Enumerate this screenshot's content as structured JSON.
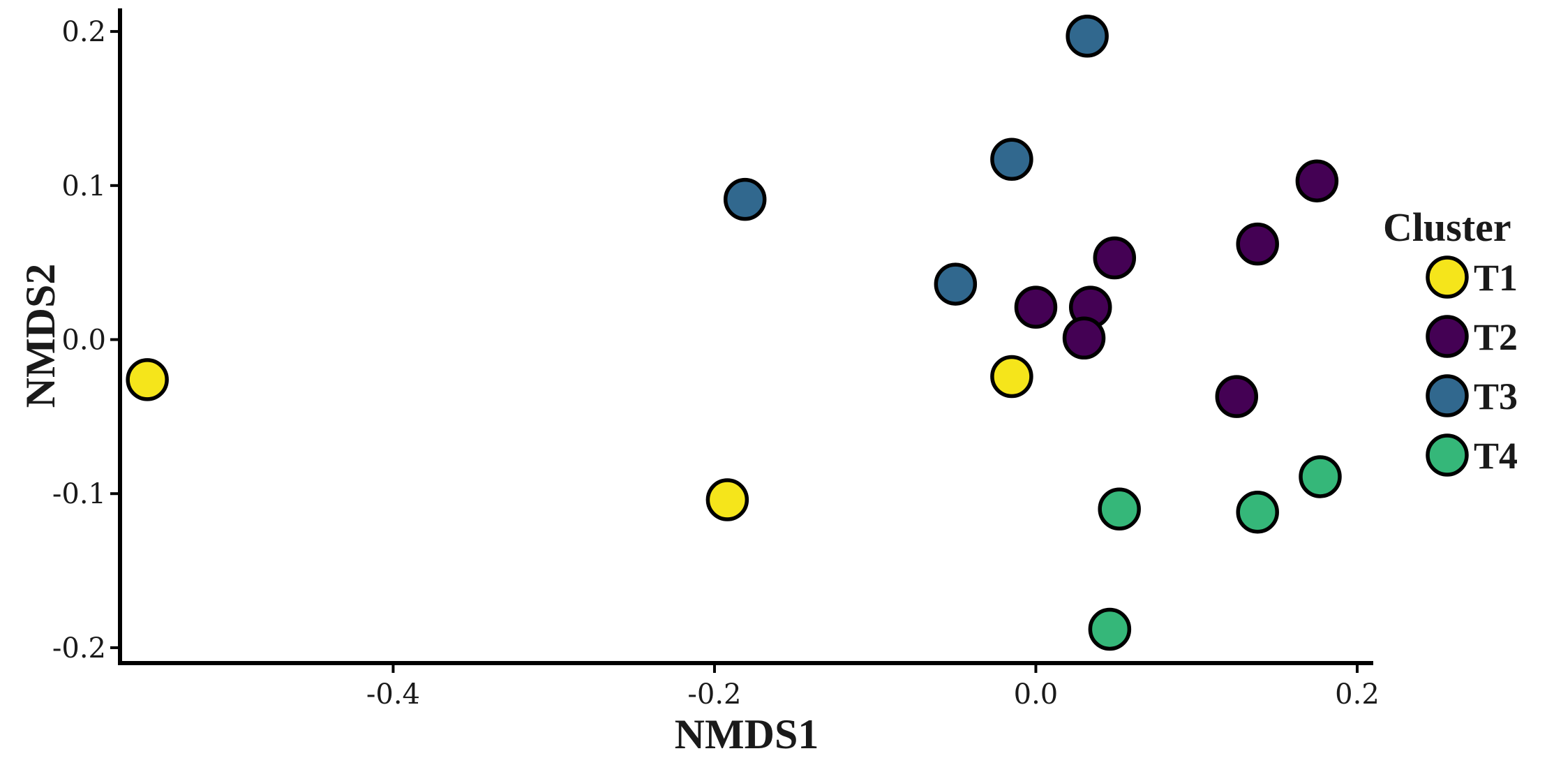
{
  "chart_data": {
    "type": "scatter",
    "title": "",
    "xlabel": "NMDS1",
    "ylabel": "NMDS2",
    "xlim": [
      -0.57,
      0.21
    ],
    "ylim": [
      -0.21,
      0.215
    ],
    "xticks": [
      -0.4,
      -0.2,
      0.0,
      0.2
    ],
    "xtick_labels": [
      "-0.4",
      "-0.2",
      "0.0",
      "0.2"
    ],
    "yticks": [
      -0.2,
      -0.1,
      0.0,
      0.1,
      0.2
    ],
    "ytick_labels": [
      "-0.2",
      "-0.1",
      "0.0",
      "0.1",
      "0.2"
    ],
    "grid": false,
    "legend": {
      "title": "Cluster",
      "position": "right"
    },
    "series": [
      {
        "name": "T1",
        "color": "#f5e51b",
        "points": [
          {
            "x": -0.553,
            "y": -0.026
          },
          {
            "x": -0.192,
            "y": -0.104
          },
          {
            "x": -0.015,
            "y": -0.024
          }
        ]
      },
      {
        "name": "T2",
        "color": "#440154",
        "points": [
          {
            "x": 0.0,
            "y": 0.021
          },
          {
            "x": 0.034,
            "y": 0.021
          },
          {
            "x": 0.049,
            "y": 0.053
          },
          {
            "x": 0.03,
            "y": 0.001
          },
          {
            "x": 0.138,
            "y": 0.062
          },
          {
            "x": 0.175,
            "y": 0.103
          },
          {
            "x": 0.125,
            "y": -0.037
          }
        ]
      },
      {
        "name": "T3",
        "color": "#31688e",
        "points": [
          {
            "x": 0.032,
            "y": 0.197
          },
          {
            "x": -0.015,
            "y": 0.117
          },
          {
            "x": -0.181,
            "y": 0.091
          },
          {
            "x": -0.05,
            "y": 0.036
          }
        ]
      },
      {
        "name": "T4",
        "color": "#35b779",
        "points": [
          {
            "x": 0.052,
            "y": -0.11
          },
          {
            "x": 0.138,
            "y": -0.112
          },
          {
            "x": 0.177,
            "y": -0.089
          },
          {
            "x": 0.046,
            "y": -0.188
          }
        ]
      }
    ]
  }
}
